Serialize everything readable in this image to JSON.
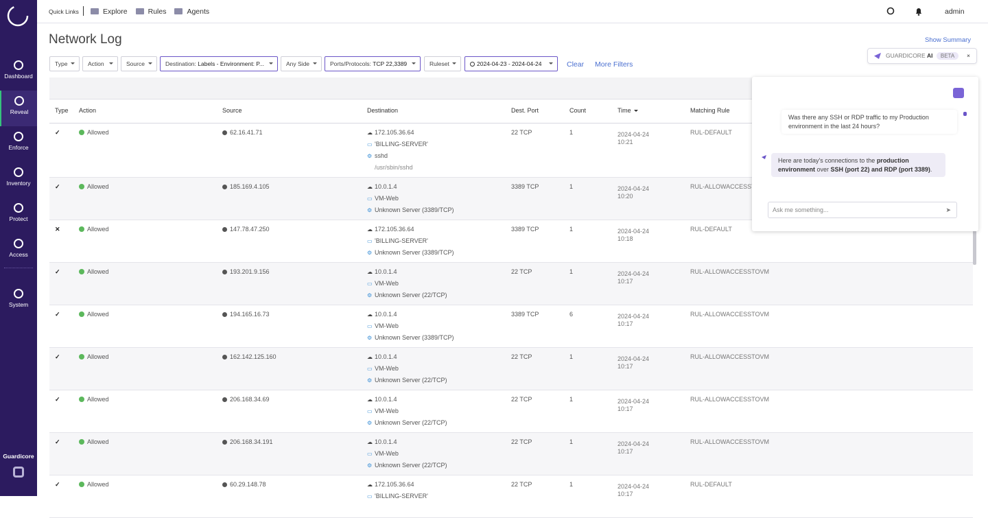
{
  "sidebar": {
    "items": [
      "Dashboard",
      "Reveal",
      "Enforce",
      "Inventory",
      "Protect",
      "Access",
      "System"
    ],
    "brand": "Guardicore"
  },
  "topbar": {
    "quick_links": "Quick Links",
    "links": [
      "Explore",
      "Rules",
      "Agents"
    ],
    "user": "admin"
  },
  "page": {
    "title": "Network Log",
    "show_summary": "Show Summary"
  },
  "filters": {
    "items": [
      {
        "label": "Type"
      },
      {
        "label": "Action"
      },
      {
        "label": "Source"
      },
      {
        "label": "Destination:",
        "value": "Labels - Environment: P..."
      },
      {
        "label": "Any Side"
      },
      {
        "label": "Ports/Protocols:",
        "value": "TCP 22,3389"
      },
      {
        "label": "Ruleset"
      },
      {
        "value": "2024-04-23 - 2024-04-24"
      }
    ],
    "clear": "Clear",
    "more": "More Filters"
  },
  "table": {
    "columns": [
      "Type",
      "Action",
      "Source",
      "Destination",
      "Dest. Port",
      "Count",
      "Time",
      "Matching Rule"
    ],
    "rows": [
      {
        "type": "✓",
        "action": "Allowed",
        "source": "62.16.41.71",
        "destination": [
          "172.105.36.64",
          "'BILLING-SERVER'",
          "sshd",
          "/usr/sbin/sshd"
        ],
        "port": "22 TCP",
        "count": 1,
        "date": "2024-04-24",
        "time": "10:21",
        "rule": "RUL-DEFAULT"
      },
      {
        "type": "✓",
        "action": "Allowed",
        "source": "185.169.4.105",
        "destination": [
          "10.0.1.4",
          "VM-Web",
          "Unknown Server (3389/TCP)"
        ],
        "port": "3389 TCP",
        "count": 1,
        "date": "2024-04-24",
        "time": "10:20",
        "rule": "RUL-ALLOWACCESSTOVM"
      },
      {
        "type": "✕",
        "action": "Allowed",
        "source": "147.78.47.250",
        "destination": [
          "172.105.36.64",
          "'BILLING-SERVER'",
          "Unknown Server (3389/TCP)"
        ],
        "port": "3389 TCP",
        "count": 1,
        "date": "2024-04-24",
        "time": "10:18",
        "rule": "RUL-DEFAULT"
      },
      {
        "type": "✓",
        "action": "Allowed",
        "source": "193.201.9.156",
        "destination": [
          "10.0.1.4",
          "VM-Web",
          "Unknown Server (22/TCP)"
        ],
        "port": "22 TCP",
        "count": 1,
        "date": "2024-04-24",
        "time": "10:17",
        "rule": "RUL-ALLOWACCESSTOVM"
      },
      {
        "type": "✓",
        "action": "Allowed",
        "source": "194.165.16.73",
        "destination": [
          "10.0.1.4",
          "VM-Web",
          "Unknown Server (3389/TCP)"
        ],
        "port": "3389 TCP",
        "count": 6,
        "date": "2024-04-24",
        "time": "10:17",
        "rule": "RUL-ALLOWACCESSTOVM"
      },
      {
        "type": "✓",
        "action": "Allowed",
        "source": "162.142.125.160",
        "destination": [
          "10.0.1.4",
          "VM-Web",
          "Unknown Server (22/TCP)"
        ],
        "port": "22 TCP",
        "count": 1,
        "date": "2024-04-24",
        "time": "10:17",
        "rule": "RUL-ALLOWACCESSTOVM"
      },
      {
        "type": "✓",
        "action": "Allowed",
        "source": "206.168.34.69",
        "destination": [
          "10.0.1.4",
          "VM-Web",
          "Unknown Server (22/TCP)"
        ],
        "port": "22 TCP",
        "count": 1,
        "date": "2024-04-24",
        "time": "10:17",
        "rule": "RUL-ALLOWACCESSTOVM"
      },
      {
        "type": "✓",
        "action": "Allowed",
        "source": "206.168.34.191",
        "destination": [
          "10.0.1.4",
          "VM-Web",
          "Unknown Server (22/TCP)"
        ],
        "port": "22 TCP",
        "count": 1,
        "date": "2024-04-24",
        "time": "10:17",
        "rule": "RUL-ALLOWACCESSTOVM"
      },
      {
        "type": "✓",
        "action": "Allowed",
        "source": "60.29.148.78",
        "destination": [
          "172.105.36.64",
          "'BILLING-SERVER'"
        ],
        "port": "22 TCP",
        "count": 1,
        "date": "2024-04-24",
        "time": "10:17",
        "rule": "RUL-DEFAULT"
      }
    ]
  },
  "ai": {
    "brand": "GUARDICORE",
    "brand_ai": "AI",
    "badge": "BETA",
    "user_message": "Was there any SSH or RDP traffic to my Production environment in the last 24 hours?",
    "reply": [
      {
        "text": "Here are today's connections to the "
      },
      {
        "text": "production environment",
        "bold": true
      },
      {
        "text": " over "
      },
      {
        "text": "SSH (port 22) and RDP (port 3389)",
        "bold": true
      },
      {
        "text": "."
      }
    ],
    "placeholder": "Ask me something..."
  }
}
